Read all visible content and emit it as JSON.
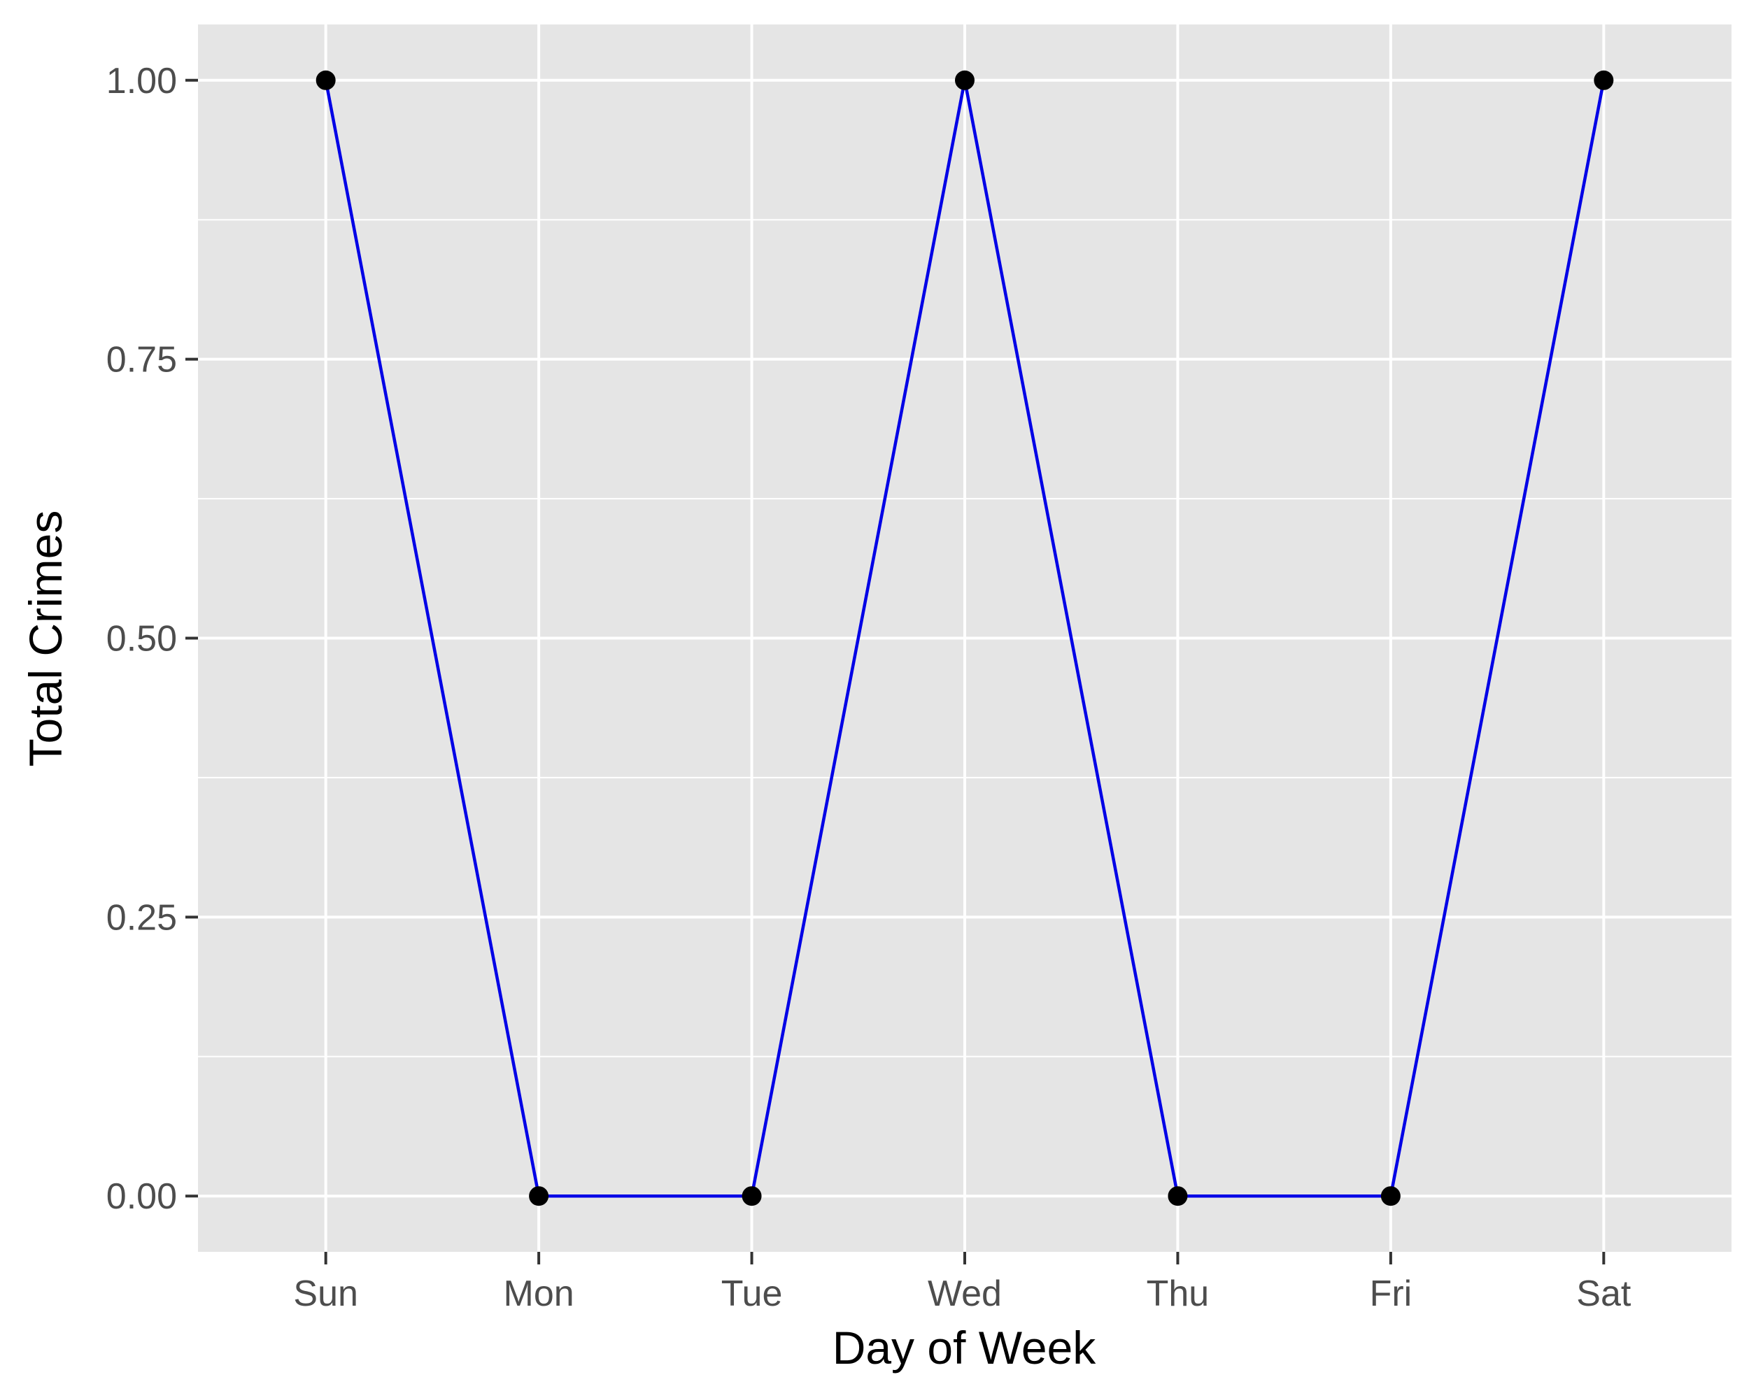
{
  "chart_data": {
    "type": "line",
    "title": "",
    "xlabel": "Day of Week",
    "ylabel": "Total Crimes",
    "categories": [
      "Sun",
      "Mon",
      "Tue",
      "Wed",
      "Thu",
      "Fri",
      "Sat"
    ],
    "series": [
      {
        "values": [
          1,
          0,
          0,
          1,
          0,
          0,
          1
        ]
      }
    ],
    "ylim": [
      -0.05,
      1.05
    ],
    "yticks": [
      0,
      0.25,
      0.5,
      0.75,
      1
    ],
    "ytick_labels": [
      "0.00",
      "0.25",
      "0.50",
      "0.75",
      "1.00"
    ],
    "grid": true,
    "legend": "none",
    "colors": {
      "panel": "#e5e5e5",
      "grid": "#ffffff",
      "line": "#0000e6",
      "point": "#000000",
      "tick_mark": "#333333"
    }
  }
}
